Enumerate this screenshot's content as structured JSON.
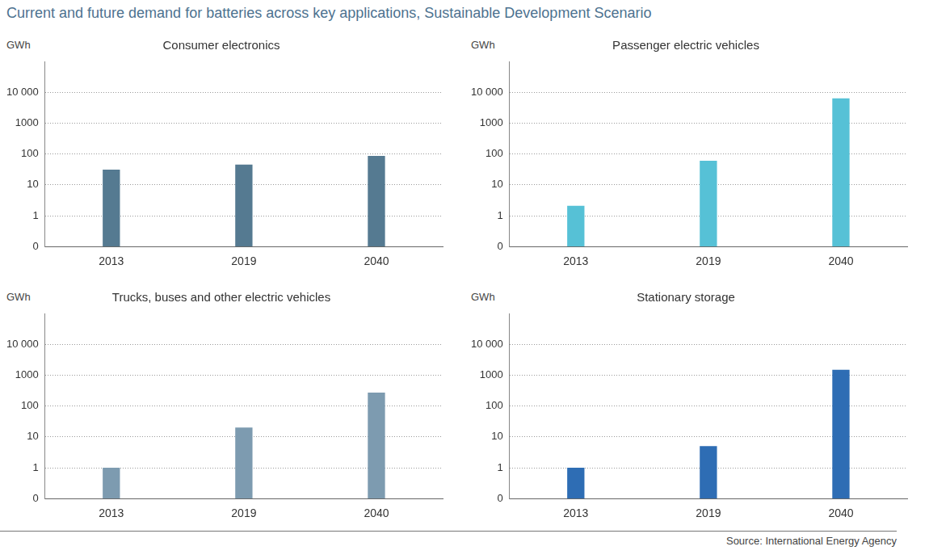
{
  "title": "Current and future demand for batteries across key applications, Sustainable Development Scenario",
  "source": "Source: International Energy Agency",
  "chart_data": [
    {
      "type": "bar",
      "title": "Consumer electronics",
      "ylabel": "GWh",
      "categories": [
        "2013",
        "2019",
        "2040"
      ],
      "values": [
        31,
        45,
        87
      ],
      "color": "#557a91",
      "log": "y",
      "ylim": [
        0.1,
        100000
      ],
      "yticks": [
        {
          "value": 0.1,
          "label": "0"
        },
        1,
        10,
        100,
        1000,
        {
          "value": 10000,
          "label": "10 000"
        }
      ],
      "grid": true
    },
    {
      "type": "bar",
      "title": "Passenger electric vehicles",
      "ylabel": "GWh",
      "categories": [
        "2013",
        "2019",
        "2040"
      ],
      "values": [
        2.1,
        60,
        6300
      ],
      "color": "#56c1d6",
      "log": "y",
      "ylim": [
        0.1,
        100000
      ],
      "yticks": [
        {
          "value": 0.1,
          "label": "0"
        },
        1,
        10,
        100,
        1000,
        {
          "value": 10000,
          "label": "10 000"
        }
      ],
      "grid": true
    },
    {
      "type": "bar",
      "title": "Trucks, buses and other electric vehicles",
      "ylabel": "GWh",
      "categories": [
        "2013",
        "2019",
        "2040"
      ],
      "values": [
        1.0,
        20,
        270
      ],
      "color": "#7d9bb0",
      "log": "y",
      "ylim": [
        0.1,
        100000
      ],
      "yticks": [
        {
          "value": 0.1,
          "label": "0"
        },
        1,
        10,
        100,
        1000,
        {
          "value": 10000,
          "label": "10 000"
        }
      ],
      "grid": true
    },
    {
      "type": "bar",
      "title": "Stationary storage",
      "ylabel": "GWh",
      "categories": [
        "2013",
        "2019",
        "2040"
      ],
      "values": [
        1.0,
        5,
        1500
      ],
      "color": "#2e6db4",
      "log": "y",
      "ylim": [
        0.1,
        100000
      ],
      "yticks": [
        {
          "value": 0.1,
          "label": "0"
        },
        1,
        10,
        100,
        1000,
        {
          "value": 10000,
          "label": "10 000"
        }
      ],
      "grid": true
    }
  ]
}
